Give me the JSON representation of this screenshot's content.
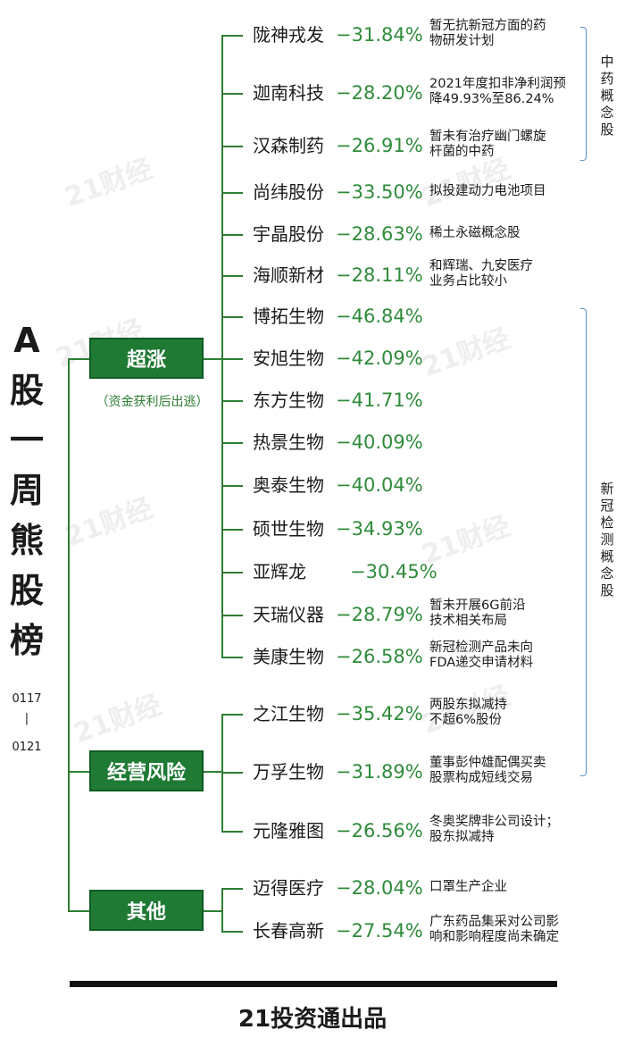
{
  "title_chars": [
    "A",
    "股",
    "一",
    "周",
    "熊",
    "股",
    "榜"
  ],
  "date_start": "0117",
  "date_separator": "|",
  "date_end": "0121",
  "watermark": "21财经",
  "categories": [
    {
      "label": "超涨",
      "note": "（资金获利后出逃）"
    },
    {
      "label": "经营风险",
      "note": ""
    },
    {
      "label": "其他",
      "note": ""
    }
  ],
  "stocks": [
    {
      "name": "陇神戎发",
      "pct": "−31.84%",
      "note": [
        "暂无抗新冠方面的药",
        "物研发计划"
      ]
    },
    {
      "name": "迦南科技",
      "pct": "−28.20%",
      "note": [
        "2021年度扣非净利润预",
        "降49.93%至86.24%"
      ]
    },
    {
      "name": "汉森制药",
      "pct": "−26.91%",
      "note": [
        "暂未有治疗幽门螺旋",
        "杆菌的中药"
      ]
    },
    {
      "name": "尚纬股份",
      "pct": "−33.50%",
      "note": [
        "拟投建动力电池项目"
      ]
    },
    {
      "name": "宇晶股份",
      "pct": "−28.63%",
      "note": [
        "稀土永磁概念股"
      ]
    },
    {
      "name": "海顺新材",
      "pct": "−28.11%",
      "note": [
        "和辉瑞、九安医疗",
        "业务占比较小"
      ]
    },
    {
      "name": "博拓生物",
      "pct": "−46.84%",
      "note": []
    },
    {
      "name": "安旭生物",
      "pct": "−42.09%",
      "note": []
    },
    {
      "name": "东方生物",
      "pct": "−41.71%",
      "note": []
    },
    {
      "name": "热景生物",
      "pct": "−40.09%",
      "note": []
    },
    {
      "name": "奥泰生物",
      "pct": "−40.04%",
      "note": []
    },
    {
      "name": "硕世生物",
      "pct": "−34.93%",
      "note": []
    },
    {
      "name": "亚辉龙",
      "pct": "−30.45%",
      "note": []
    },
    {
      "name": "天瑞仪器",
      "pct": "−28.79%",
      "note": [
        "暂未开展6G前沿",
        "技术相关布局"
      ]
    },
    {
      "name": "美康生物",
      "pct": "−26.58%",
      "note": [
        "新冠检测产品未向",
        "FDA递交申请材料"
      ]
    },
    {
      "name": "之江生物",
      "pct": "−35.42%",
      "note": [
        "两股东拟减持",
        "不超6%股份"
      ]
    },
    {
      "name": "万孚生物",
      "pct": "−31.89%",
      "note": [
        "董事彭仲雄配偶买卖",
        "股票构成短线交易"
      ]
    },
    {
      "name": "元隆雅图",
      "pct": "−26.56%",
      "note": [
        "冬奥奖牌非公司设计；",
        "股东拟减持"
      ]
    },
    {
      "name": "迈得医疗",
      "pct": "−28.04%",
      "note": [
        "口罩生产企业"
      ]
    },
    {
      "name": "长春高新",
      "pct": "−27.54%",
      "note": [
        "广东药品集采对公司影",
        "响和影响程度尚未确定"
      ]
    }
  ],
  "concept_groups": [
    {
      "label": [
        "中",
        "药",
        "概",
        "念",
        "股"
      ]
    },
    {
      "label": [
        "新",
        "冠",
        "检",
        "测",
        "概",
        "念",
        "股"
      ]
    }
  ],
  "footer": "21投资通出品",
  "colors": {
    "accent_green": "#1f7a34",
    "pct_green": "#2e8b3a",
    "brace_blue": "#5a8fd0"
  }
}
